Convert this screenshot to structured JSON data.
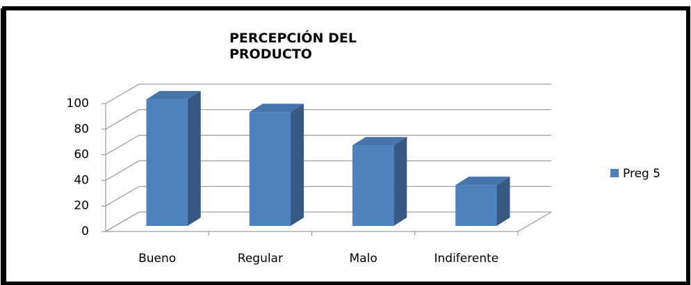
{
  "chart_data": {
    "type": "bar3d",
    "title": "PERCEPCIÓN DEL PRODUCTO",
    "categories": [
      "Bueno",
      "Regular",
      "Malo",
      "Indiferente"
    ],
    "series": [
      {
        "name": "Preg 5",
        "color": "#4f81bd",
        "values": [
          99,
          89,
          63,
          32
        ]
      }
    ],
    "ylim": [
      0,
      100
    ],
    "yticks": [
      0,
      20,
      40,
      60,
      80,
      100
    ],
    "grid": true,
    "legend": "right"
  }
}
